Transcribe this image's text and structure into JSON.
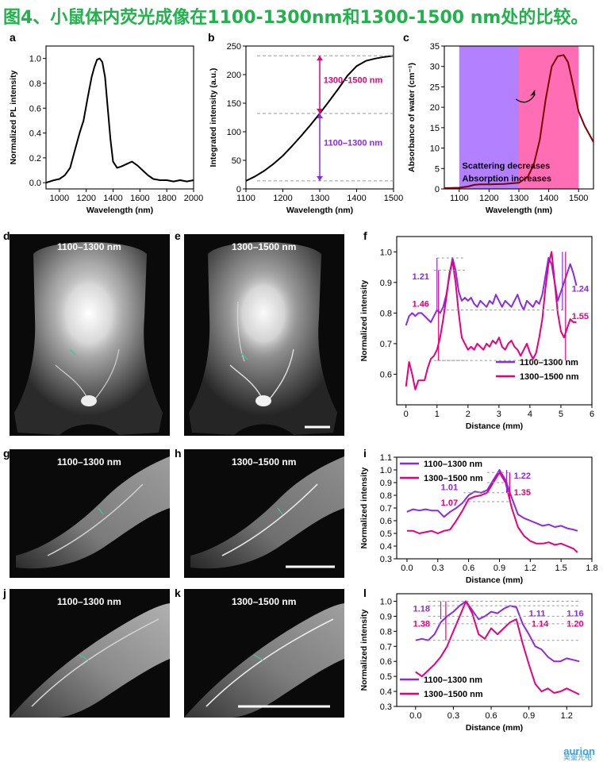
{
  "page": {
    "title": "图4、小鼠体内荧光成像在1100-1300nm和1300-1500 nm处的比较。"
  },
  "panels": {
    "a": "a",
    "b": "b",
    "c": "c",
    "d": "d",
    "e": "e",
    "f": "f",
    "g": "g",
    "h": "h",
    "i": "i",
    "j": "j",
    "k": "k",
    "l": "l"
  },
  "photos": {
    "d_label": "1100–1300 nm",
    "e_label": "1300–1500 nm",
    "g_label": "1100–1300 nm",
    "h_label": "1300–1500 nm",
    "j_label": "1100–1300 nm",
    "k_label": "1300–1500 nm"
  },
  "watermark": {
    "brand": "aurion",
    "sub": "昊量光电"
  },
  "colors": {
    "purple": "#8a2be2",
    "magenta": "#e6007e",
    "black": "#000000",
    "water": "#7f0000",
    "title_green": "#22b14c",
    "band1": "#b380ff",
    "band2": "#ff6eb4"
  },
  "chart_data": [
    {
      "id": "a",
      "type": "line",
      "xlabel": "Wavelength (nm)",
      "ylabel": "Normalized PL intensity",
      "xlim": [
        900,
        2000
      ],
      "ylim": [
        -0.05,
        1.1
      ],
      "xticks": [
        1000,
        1200,
        1400,
        1600,
        1800,
        2000
      ],
      "yticks": [
        0.0,
        0.2,
        0.4,
        0.6,
        0.8,
        1.0
      ],
      "series": [
        {
          "color": "#000000",
          "x": [
            900,
            960,
            1000,
            1040,
            1080,
            1120,
            1150,
            1180,
            1210,
            1240,
            1260,
            1280,
            1300,
            1320,
            1340,
            1360,
            1380,
            1400,
            1430,
            1460,
            1500,
            1540,
            1580,
            1620,
            1660,
            1700,
            1750,
            1800,
            1850,
            1900,
            1950,
            2000
          ],
          "y": [
            0.0,
            0.02,
            0.03,
            0.06,
            0.12,
            0.28,
            0.4,
            0.5,
            0.68,
            0.85,
            0.93,
            0.99,
            1.0,
            0.97,
            0.85,
            0.6,
            0.35,
            0.17,
            0.12,
            0.13,
            0.15,
            0.17,
            0.14,
            0.1,
            0.06,
            0.03,
            0.02,
            0.02,
            0.01,
            0.02,
            0.01,
            0.02
          ]
        }
      ]
    },
    {
      "id": "b",
      "type": "line",
      "xlabel": "Wavelength (nm)",
      "ylabel": "Integrated intensity (a.u.)",
      "xlim": [
        1100,
        1500
      ],
      "ylim": [
        0,
        250
      ],
      "xticks": [
        1100,
        1200,
        1300,
        1400,
        1500
      ],
      "yticks": [
        0,
        50,
        100,
        150,
        200,
        250
      ],
      "series": [
        {
          "color": "#000000",
          "x": [
            1100,
            1125,
            1150,
            1175,
            1200,
            1225,
            1250,
            1275,
            1300,
            1325,
            1350,
            1375,
            1400,
            1425,
            1450,
            1475,
            1500
          ],
          "y": [
            14,
            22,
            32,
            44,
            58,
            75,
            93,
            112,
            132,
            153,
            175,
            198,
            215,
            224,
            228,
            231,
            233
          ]
        }
      ],
      "annotations": [
        {
          "text": "1300–1500 nm",
          "color": "#e6007e",
          "from": 132,
          "to": 233
        },
        {
          "text": "1100–1300 nm",
          "color": "#8a2be2",
          "from": 14,
          "to": 132
        }
      ]
    },
    {
      "id": "c",
      "type": "line",
      "xlabel": "Wavelength (nm)",
      "ylabel": "Absorbance of water (cm⁻¹)",
      "xlim": [
        1050,
        1550
      ],
      "ylim": [
        0,
        35
      ],
      "xticks": [
        1100,
        1200,
        1300,
        1400,
        1500
      ],
      "yticks": [
        0,
        5,
        10,
        15,
        20,
        25,
        30,
        35
      ],
      "bands": [
        {
          "from": 1100,
          "to": 1300,
          "color": "#b380ff"
        },
        {
          "from": 1300,
          "to": 1500,
          "color": "#ff6eb4"
        }
      ],
      "text": [
        "Scattering decreases",
        "Absorption increases"
      ],
      "series": [
        {
          "color": "#7f0000",
          "x": [
            1050,
            1100,
            1130,
            1150,
            1170,
            1200,
            1250,
            1300,
            1330,
            1350,
            1370,
            1390,
            1410,
            1430,
            1450,
            1465,
            1480,
            1500,
            1520,
            1550
          ],
          "y": [
            0.2,
            0.3,
            0.6,
            1.0,
            1.1,
            1.1,
            1.2,
            1.5,
            3.0,
            6.0,
            12.0,
            22.0,
            30.0,
            32.5,
            32.8,
            31.0,
            26.0,
            19.0,
            15.5,
            11.5
          ]
        }
      ]
    },
    {
      "id": "f",
      "type": "line",
      "xlabel": "Distance (mm)",
      "ylabel": "Normalized intensity",
      "xlim": [
        -0.3,
        6
      ],
      "ylim": [
        0.5,
        1.05
      ],
      "xticks": [
        0,
        1,
        2,
        3,
        4,
        5,
        6
      ],
      "yticks": [
        0.6,
        0.7,
        0.8,
        0.9,
        1.0
      ],
      "legend": [
        "1100–1300 nm",
        "1300–1500 nm"
      ],
      "annotations": [
        {
          "text": "1.21",
          "color": "#8a2be2"
        },
        {
          "text": "1.46",
          "color": "#e6007e"
        },
        {
          "text": "1.24",
          "color": "#8a2be2"
        },
        {
          "text": "1.55",
          "color": "#e6007e"
        }
      ],
      "series": [
        {
          "name": "1100–1300 nm",
          "color": "#8a2be2",
          "x": [
            0,
            0.1,
            0.2,
            0.3,
            0.4,
            0.5,
            0.6,
            0.7,
            0.8,
            0.9,
            1.0,
            1.1,
            1.2,
            1.3,
            1.4,
            1.5,
            1.6,
            1.7,
            1.8,
            1.9,
            2.0,
            2.1,
            2.2,
            2.3,
            2.4,
            2.5,
            2.6,
            2.7,
            2.8,
            2.9,
            3.0,
            3.1,
            3.2,
            3.3,
            3.4,
            3.5,
            3.6,
            3.7,
            3.8,
            3.9,
            4.0,
            4.1,
            4.2,
            4.3,
            4.4,
            4.5,
            4.6,
            4.7,
            4.8,
            4.9,
            5.0,
            5.1,
            5.2,
            5.3,
            5.4,
            5.5
          ],
          "y": [
            0.76,
            0.79,
            0.8,
            0.79,
            0.8,
            0.8,
            0.79,
            0.78,
            0.77,
            0.79,
            0.81,
            0.8,
            0.82,
            0.86,
            0.92,
            0.98,
            0.94,
            0.87,
            0.84,
            0.85,
            0.84,
            0.85,
            0.83,
            0.82,
            0.84,
            0.83,
            0.82,
            0.84,
            0.83,
            0.86,
            0.84,
            0.82,
            0.84,
            0.83,
            0.82,
            0.84,
            0.86,
            0.83,
            0.81,
            0.84,
            0.83,
            0.82,
            0.84,
            0.83,
            0.86,
            0.92,
            0.98,
            0.96,
            0.9,
            0.84,
            0.87,
            0.9,
            0.93,
            0.96,
            0.93,
            0.89
          ]
        },
        {
          "name": "1300–1500 nm",
          "color": "#e6007e",
          "x": [
            0,
            0.1,
            0.2,
            0.3,
            0.4,
            0.5,
            0.6,
            0.7,
            0.8,
            0.9,
            1.0,
            1.1,
            1.2,
            1.3,
            1.4,
            1.5,
            1.6,
            1.7,
            1.8,
            1.9,
            2.0,
            2.1,
            2.2,
            2.3,
            2.4,
            2.5,
            2.6,
            2.7,
            2.8,
            2.9,
            3.0,
            3.1,
            3.2,
            3.3,
            3.4,
            3.5,
            3.6,
            3.7,
            3.8,
            3.9,
            4.0,
            4.1,
            4.2,
            4.3,
            4.4,
            4.5,
            4.6,
            4.7,
            4.8,
            4.9,
            5.0,
            5.1,
            5.2,
            5.3,
            5.4,
            5.5
          ],
          "y": [
            0.56,
            0.64,
            0.6,
            0.55,
            0.58,
            0.58,
            0.58,
            0.62,
            0.65,
            0.66,
            0.68,
            0.72,
            0.78,
            0.85,
            0.93,
            0.97,
            0.9,
            0.8,
            0.72,
            0.7,
            0.68,
            0.69,
            0.68,
            0.7,
            0.69,
            0.68,
            0.7,
            0.69,
            0.71,
            0.7,
            0.72,
            0.69,
            0.68,
            0.7,
            0.71,
            0.69,
            0.68,
            0.66,
            0.68,
            0.7,
            0.67,
            0.65,
            0.67,
            0.72,
            0.78,
            0.88,
            0.96,
            1.0,
            0.9,
            0.8,
            0.74,
            0.72,
            0.75,
            0.78,
            0.77,
            0.77
          ]
        }
      ]
    },
    {
      "id": "i",
      "type": "line",
      "xlabel": "Distance (mm)",
      "ylabel": "Normalized intensity",
      "xlim": [
        -0.1,
        1.8
      ],
      "ylim": [
        0.3,
        1.1
      ],
      "xticks": [
        0.0,
        0.3,
        0.6,
        0.9,
        1.2,
        1.5,
        1.8
      ],
      "yticks": [
        0.3,
        0.4,
        0.5,
        0.6,
        0.7,
        0.8,
        0.9,
        1.0,
        1.1
      ],
      "legend": [
        "1100–1300 nm",
        "1300–1500 nm"
      ],
      "annotations": [
        {
          "text": "1.22",
          "color": "#8a2be2"
        },
        {
          "text": "1.35",
          "color": "#e6007e"
        },
        {
          "text": "1.01",
          "color": "#8a2be2"
        },
        {
          "text": "1.07",
          "color": "#e6007e"
        }
      ],
      "series": [
        {
          "name": "1100–1300 nm",
          "color": "#8a2be2",
          "x": [
            0,
            0.06,
            0.12,
            0.18,
            0.24,
            0.3,
            0.36,
            0.42,
            0.48,
            0.54,
            0.6,
            0.66,
            0.72,
            0.78,
            0.84,
            0.9,
            0.96,
            1.02,
            1.08,
            1.14,
            1.2,
            1.26,
            1.32,
            1.38,
            1.44,
            1.5,
            1.56,
            1.62,
            1.66
          ],
          "y": [
            0.67,
            0.69,
            0.68,
            0.69,
            0.68,
            0.68,
            0.63,
            0.67,
            0.7,
            0.74,
            0.8,
            0.83,
            0.82,
            0.84,
            0.92,
            1.0,
            0.92,
            0.78,
            0.65,
            0.62,
            0.6,
            0.58,
            0.56,
            0.57,
            0.55,
            0.56,
            0.54,
            0.53,
            0.52
          ]
        },
        {
          "name": "1300–1500 nm",
          "color": "#e6007e",
          "x": [
            0,
            0.06,
            0.12,
            0.18,
            0.24,
            0.3,
            0.36,
            0.42,
            0.48,
            0.54,
            0.6,
            0.66,
            0.72,
            0.78,
            0.84,
            0.9,
            0.96,
            1.02,
            1.08,
            1.14,
            1.2,
            1.26,
            1.32,
            1.38,
            1.44,
            1.5,
            1.56,
            1.62,
            1.66
          ],
          "y": [
            0.52,
            0.52,
            0.5,
            0.51,
            0.52,
            0.5,
            0.52,
            0.53,
            0.6,
            0.68,
            0.77,
            0.79,
            0.8,
            0.82,
            0.9,
            0.98,
            0.9,
            0.7,
            0.55,
            0.48,
            0.44,
            0.42,
            0.42,
            0.43,
            0.41,
            0.42,
            0.4,
            0.38,
            0.35
          ]
        }
      ]
    },
    {
      "id": "l",
      "type": "line",
      "xlabel": "Distance (mm)",
      "ylabel": "Normalized intensity",
      "xlim": [
        -0.15,
        1.4
      ],
      "ylim": [
        0.3,
        1.05
      ],
      "xticks": [
        0.0,
        0.3,
        0.6,
        0.9,
        1.2
      ],
      "yticks": [
        0.3,
        0.4,
        0.5,
        0.6,
        0.7,
        0.8,
        0.9,
        1.0
      ],
      "legend": [
        "1100–1300 nm",
        "1300–1500 nm"
      ],
      "annotations": [
        {
          "text": "1.18",
          "color": "#8a2be2"
        },
        {
          "text": "1.38",
          "color": "#e6007e"
        },
        {
          "text": "1.11",
          "color": "#8a2be2"
        },
        {
          "text": "1.14",
          "color": "#e6007e"
        },
        {
          "text": "1.16",
          "color": "#8a2be2"
        },
        {
          "text": "1.20",
          "color": "#e6007e"
        }
      ],
      "series": [
        {
          "name": "1100–1300 nm",
          "color": "#8a2be2",
          "x": [
            0,
            0.05,
            0.1,
            0.15,
            0.2,
            0.25,
            0.3,
            0.35,
            0.4,
            0.45,
            0.5,
            0.55,
            0.6,
            0.65,
            0.7,
            0.75,
            0.8,
            0.85,
            0.9,
            0.95,
            1.0,
            1.05,
            1.1,
            1.15,
            1.2,
            1.25,
            1.3
          ],
          "y": [
            0.74,
            0.75,
            0.74,
            0.78,
            0.86,
            0.9,
            0.93,
            0.97,
            1.0,
            0.94,
            0.88,
            0.9,
            0.93,
            0.92,
            0.95,
            0.97,
            0.96,
            0.85,
            0.78,
            0.7,
            0.68,
            0.63,
            0.6,
            0.6,
            0.62,
            0.61,
            0.6
          ]
        },
        {
          "name": "1300–1500 nm",
          "color": "#e6007e",
          "x": [
            0,
            0.05,
            0.1,
            0.15,
            0.2,
            0.25,
            0.3,
            0.35,
            0.4,
            0.45,
            0.5,
            0.55,
            0.6,
            0.65,
            0.7,
            0.75,
            0.8,
            0.85,
            0.9,
            0.95,
            1.0,
            1.05,
            1.1,
            1.15,
            1.2,
            1.25,
            1.3
          ],
          "y": [
            0.53,
            0.5,
            0.54,
            0.58,
            0.63,
            0.7,
            0.8,
            0.9,
            1.0,
            0.92,
            0.78,
            0.75,
            0.82,
            0.78,
            0.82,
            0.86,
            0.88,
            0.72,
            0.58,
            0.45,
            0.4,
            0.42,
            0.39,
            0.4,
            0.42,
            0.4,
            0.38
          ]
        }
      ]
    }
  ]
}
